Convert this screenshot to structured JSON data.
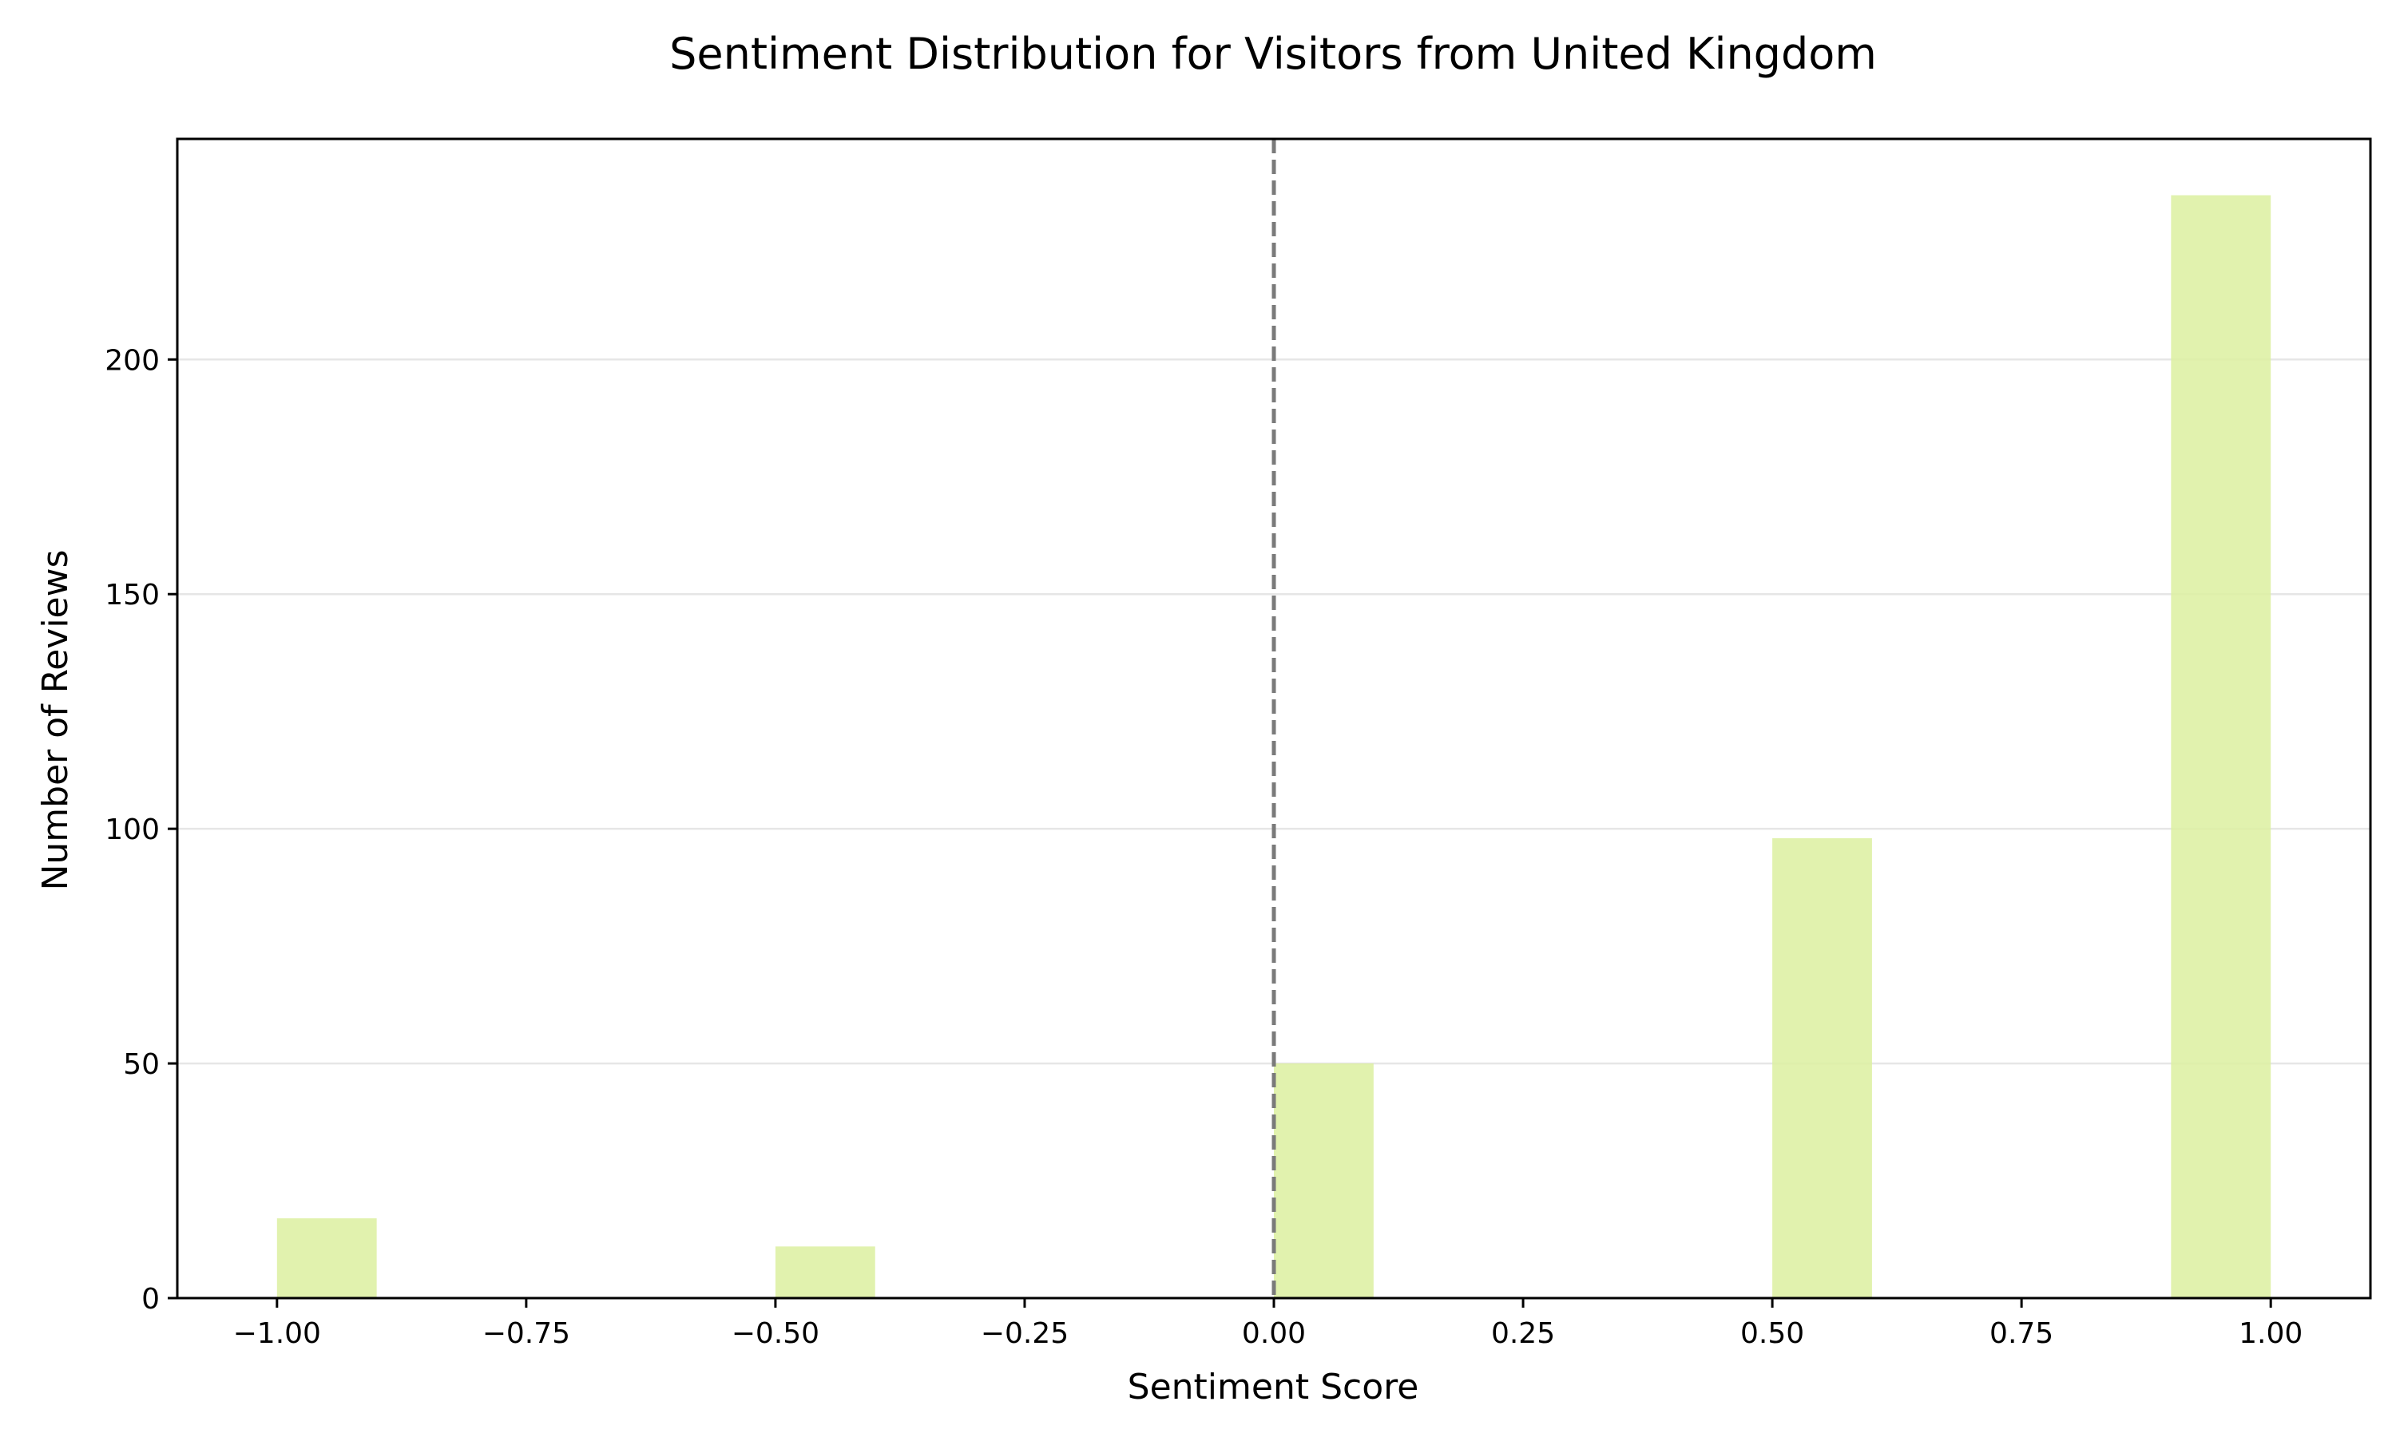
{
  "chart_data": {
    "type": "bar",
    "title": "Sentiment Distribution for Visitors from United Kingdom",
    "xlabel": "Sentiment Score",
    "ylabel": "Number of Reviews",
    "xlim": [
      -1.1,
      1.1
    ],
    "ylim": [
      0,
      247
    ],
    "bin_width": 0.1,
    "bars": [
      {
        "x_start": -1.0,
        "x_end": -0.9,
        "value": 17
      },
      {
        "x_start": -0.5,
        "x_end": -0.4,
        "value": 11
      },
      {
        "x_start": 0.0,
        "x_end": 0.1,
        "value": 50
      },
      {
        "x_start": 0.5,
        "x_end": 0.6,
        "value": 98
      },
      {
        "x_start": 0.9,
        "x_end": 1.0,
        "value": 235
      }
    ],
    "x_ticks": [
      {
        "value": -1.0,
        "label": "−1.00"
      },
      {
        "value": -0.75,
        "label": "−0.75"
      },
      {
        "value": -0.5,
        "label": "−0.50"
      },
      {
        "value": -0.25,
        "label": "−0.25"
      },
      {
        "value": 0.0,
        "label": "0.00"
      },
      {
        "value": 0.25,
        "label": "0.25"
      },
      {
        "value": 0.5,
        "label": "0.50"
      },
      {
        "value": 0.75,
        "label": "0.75"
      },
      {
        "value": 1.0,
        "label": "1.00"
      }
    ],
    "y_ticks": [
      {
        "value": 0,
        "label": "0"
      },
      {
        "value": 50,
        "label": "50"
      },
      {
        "value": 100,
        "label": "100"
      },
      {
        "value": 150,
        "label": "150"
      },
      {
        "value": 200,
        "label": "200"
      }
    ],
    "reference_line": {
      "x": 0.0,
      "style": "dashed"
    },
    "grid": "horizontal",
    "colors": {
      "bar": "#dcf0a0",
      "reference_line": "#7a7a7a",
      "grid": "#e6e6e6",
      "axes": "#000000"
    }
  }
}
